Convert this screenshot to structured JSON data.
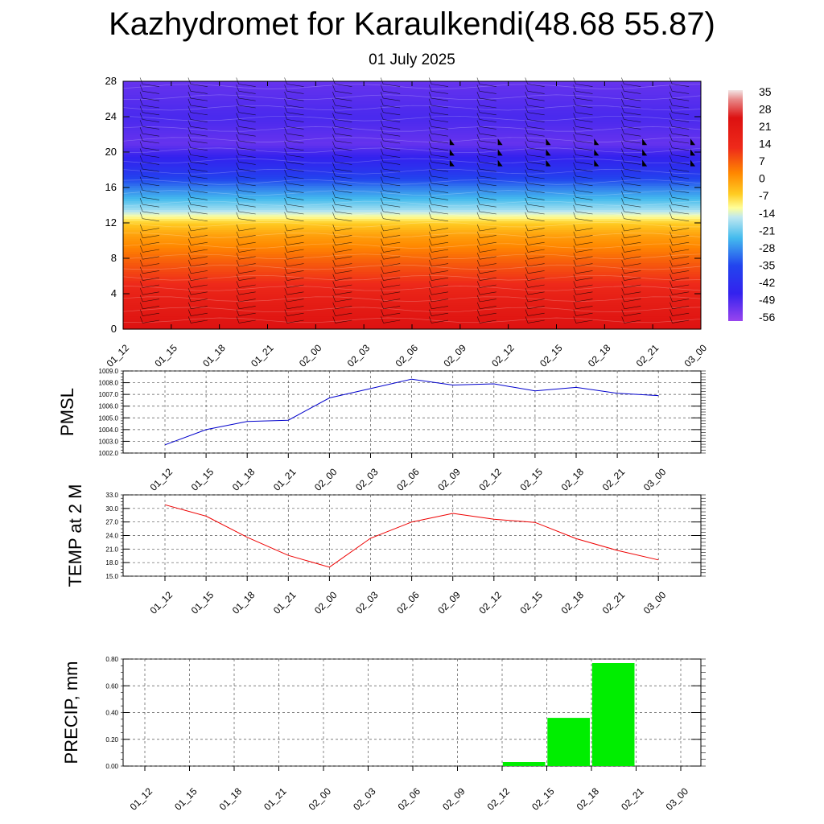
{
  "title": "Kazhydromet for Karaulkendi(48.68 55.87)",
  "subtitle": "01 July 2025",
  "time_labels": [
    "01_12",
    "01_15",
    "01_18",
    "01_21",
    "02_00",
    "02_03",
    "02_06",
    "02_09",
    "02_12",
    "02_15",
    "02_18",
    "02_21",
    "03_00"
  ],
  "chart_data": [
    {
      "type": "heatmap",
      "title": "Kazhydromet for Karaulkendi(48.68 55.87)",
      "subtitle": "01 July 2025",
      "x": [
        "01_12",
        "01_15",
        "01_18",
        "01_21",
        "02_00",
        "02_03",
        "02_06",
        "02_09",
        "02_12",
        "02_15",
        "02_18",
        "02_21",
        "03_00"
      ],
      "ylim": [
        0,
        28
      ],
      "yticks": [
        0,
        4,
        8,
        12,
        16,
        20,
        24,
        28
      ],
      "colorbar_labels": [
        "35",
        "28",
        "21",
        "14",
        "7",
        "0",
        "-7",
        "-14",
        "-21",
        "-28",
        "-35",
        "-42",
        "-49",
        "-56"
      ],
      "colorbar_min": -63,
      "colorbar_max": 42,
      "profile": [
        {
          "level": 0,
          "value": 30
        },
        {
          "level": 4,
          "value": 24
        },
        {
          "level": 8,
          "value": 14
        },
        {
          "level": 10.5,
          "value": 7
        },
        {
          "level": 12,
          "value": 0
        },
        {
          "level": 13.5,
          "value": -14
        },
        {
          "level": 16,
          "value": -28
        },
        {
          "level": 18,
          "value": -42
        },
        {
          "level": 21,
          "value": -56
        },
        {
          "level": 24,
          "value": -52
        },
        {
          "level": 28,
          "value": -56
        }
      ],
      "wind_barbs": true
    },
    {
      "type": "line",
      "ylabel": "PMSL",
      "x": [
        "01_12",
        "01_15",
        "01_18",
        "01_21",
        "02_00",
        "02_03",
        "02_06",
        "02_09",
        "02_12",
        "02_15",
        "02_18",
        "02_21",
        "03_00"
      ],
      "ylim": [
        1002.0,
        1009.0
      ],
      "yticks": [
        "1002.0",
        "1003.0",
        "1004.0",
        "1005.0",
        "1006.0",
        "1007.0",
        "1008.0",
        "1009.0"
      ],
      "series": [
        {
          "values": [
            1002.7,
            1004.0,
            1004.7,
            1004.8,
            1006.7,
            1007.5,
            1008.3,
            1007.8,
            1007.9,
            1007.3,
            1007.6,
            1007.1,
            1006.9
          ],
          "color": "#0000cc"
        }
      ]
    },
    {
      "type": "line",
      "ylabel": "TEMP at 2 M",
      "x": [
        "01_12",
        "01_15",
        "01_18",
        "01_21",
        "02_00",
        "02_03",
        "02_06",
        "02_09",
        "02_12",
        "02_15",
        "02_18",
        "02_21",
        "03_00"
      ],
      "ylim": [
        15.0,
        33.0
      ],
      "yticks": [
        "15.0",
        "18.0",
        "21.0",
        "24.0",
        "27.0",
        "30.0",
        "33.0"
      ],
      "series": [
        {
          "values": [
            30.8,
            28.3,
            23.6,
            19.6,
            17.0,
            23.4,
            27.0,
            28.9,
            27.6,
            26.9,
            23.3,
            20.7,
            18.6
          ],
          "color": "#ee0000"
        }
      ]
    },
    {
      "type": "bar",
      "ylabel": "PRECIP, mm",
      "categories": [
        "01_12",
        "01_15",
        "01_18",
        "01_21",
        "02_00",
        "02_03",
        "02_06",
        "02_09",
        "02_12",
        "02_15",
        "02_18",
        "02_21",
        "03_00"
      ],
      "ylim": [
        0,
        0.8
      ],
      "yticks": [
        "0.00",
        "0.20",
        "0.40",
        "0.60",
        "0.80"
      ],
      "values": [
        0,
        0,
        0,
        0,
        0,
        0,
        0,
        0,
        0,
        0.03,
        0.36,
        0.77,
        0
      ],
      "color": "#00ee00"
    }
  ]
}
